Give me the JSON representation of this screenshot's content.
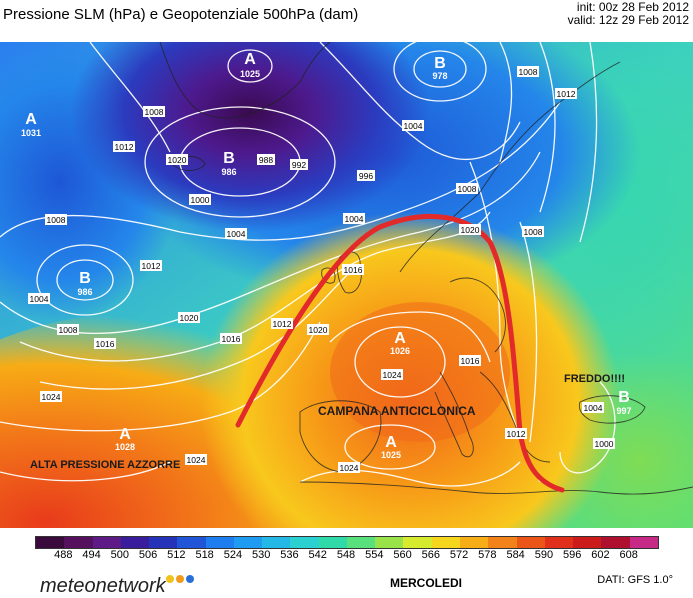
{
  "header": {
    "title": "Pressione SLM (hPa) e Geopotenziale 500hPa (dam)",
    "init": "init: 00z 28 Feb 2012",
    "valid": "valid: 12z 29 Feb 2012"
  },
  "pressure_centers": [
    {
      "letter": "A",
      "value": "1025"
    },
    {
      "letter": "B",
      "value": "978"
    },
    {
      "letter": "A",
      "value": "1031"
    },
    {
      "letter": "B",
      "value": "986"
    },
    {
      "letter": "B",
      "value": "986"
    },
    {
      "letter": "A",
      "value": "1026"
    },
    {
      "letter": "A",
      "value": "1028"
    },
    {
      "letter": "A",
      "value": "1025"
    },
    {
      "letter": "B",
      "value": "997"
    }
  ],
  "isobar_labels": [
    "1008",
    "1012",
    "1020",
    "988",
    "992",
    "996",
    "1000",
    "1004",
    "1004",
    "1008",
    "1016",
    "1020",
    "1004",
    "1008",
    "1016",
    "1012",
    "1016",
    "1020",
    "1012",
    "1020",
    "1024",
    "1016",
    "1024",
    "1024",
    "1000",
    "1004",
    "1008",
    "1008",
    "1012",
    "1012",
    "1024",
    "1004",
    "1008"
  ],
  "annotations": {
    "freddo": "FREDDO!!!!",
    "campana": "CAMPANA ANTICICLONICA",
    "azzorre": "ALTA PRESSIONE AZZORRE"
  },
  "colorbar": {
    "ticks": [
      "488",
      "494",
      "500",
      "506",
      "512",
      "518",
      "524",
      "530",
      "536",
      "542",
      "548",
      "554",
      "560",
      "566",
      "572",
      "578",
      "584",
      "590",
      "596",
      "602",
      "608"
    ],
    "colors": [
      "#3a0a3d",
      "#55105e",
      "#5e1a86",
      "#3a1d9c",
      "#2433b8",
      "#1f55d6",
      "#1e7ef0",
      "#1f9cf2",
      "#23b8e6",
      "#2ad1d0",
      "#2fd9a8",
      "#57e07c",
      "#9ae24a",
      "#d6ea2e",
      "#f6d51d",
      "#f7ad15",
      "#f3821a",
      "#ec5518",
      "#e0301c",
      "#cc1b1b",
      "#b01030",
      "#c62a86"
    ]
  },
  "footer": {
    "logo": "meteonetwork",
    "day": "MERCOLEDI",
    "source": "DATI: GFS 1.0°"
  },
  "colors": {
    "ridge_line": "#e22a2a",
    "isobar": "#ffffff",
    "coast": "#222222"
  }
}
